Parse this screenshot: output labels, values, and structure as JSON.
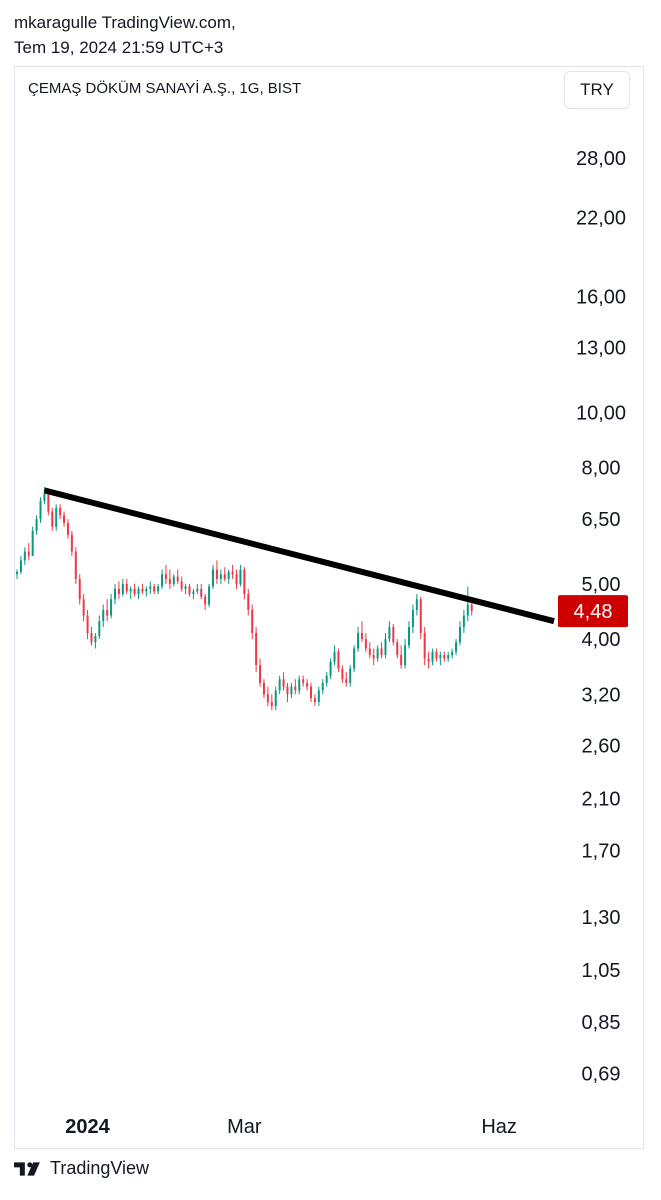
{
  "header": {
    "line1": "mkaragulle TradingView.com,",
    "line2": "Tem 19, 2024 21:59 UTC+3"
  },
  "chart_header": {
    "symbol": "ÇEMAŞ DÖKÜM SANAYİ A.Ş., 1G, BIST",
    "currency": "TRY"
  },
  "footer": {
    "brand": "TradingView"
  },
  "colors": {
    "up": "#089981",
    "down": "#f23645",
    "last_price_bg": "#cc0000",
    "trendline": "#000000"
  },
  "chart_data": {
    "type": "candlestick",
    "scale": "log",
    "ylim": [
      0.62,
      34
    ],
    "y_ticks": [
      {
        "v": 28,
        "label": "28,00"
      },
      {
        "v": 22,
        "label": "22,00"
      },
      {
        "v": 16,
        "label": "16,00"
      },
      {
        "v": 13,
        "label": "13,00"
      },
      {
        "v": 10,
        "label": "10,00"
      },
      {
        "v": 8,
        "label": "8,00"
      },
      {
        "v": 6.5,
        "label": "6,50"
      },
      {
        "v": 5,
        "label": "5,00"
      },
      {
        "v": 4,
        "label": "4,00"
      },
      {
        "v": 3.2,
        "label": "3,20"
      },
      {
        "v": 2.6,
        "label": "2,60"
      },
      {
        "v": 2.1,
        "label": "2,10"
      },
      {
        "v": 1.7,
        "label": "1,70"
      },
      {
        "v": 1.3,
        "label": "1,30"
      },
      {
        "v": 1.05,
        "label": "1,05"
      },
      {
        "v": 0.85,
        "label": "0,85"
      },
      {
        "v": 0.69,
        "label": "0,69"
      }
    ],
    "x_labels": [
      {
        "label": "2024",
        "bold": true,
        "bar": 18
      },
      {
        "label": "Mar",
        "bold": false,
        "bar": 58
      },
      {
        "label": "Haz",
        "bold": false,
        "bar": 123
      }
    ],
    "last_price": {
      "value": 4.48,
      "label": "4,48"
    },
    "trendline": {
      "from": {
        "bar": 7,
        "price": 7.3
      },
      "to": {
        "bar": 137,
        "price": 4.3
      }
    },
    "bars": [
      [
        5.2,
        5.3,
        5.1,
        5.25
      ],
      [
        5.25,
        5.6,
        5.2,
        5.5
      ],
      [
        5.5,
        5.8,
        5.4,
        5.7
      ],
      [
        5.7,
        5.9,
        5.5,
        5.6
      ],
      [
        5.6,
        6.3,
        5.6,
        6.2
      ],
      [
        6.2,
        6.6,
        6.1,
        6.5
      ],
      [
        6.5,
        7.1,
        6.4,
        7.0
      ],
      [
        7.0,
        7.4,
        6.9,
        7.2
      ],
      [
        7.2,
        7.3,
        6.6,
        6.7
      ],
      [
        6.7,
        6.8,
        6.2,
        6.3
      ],
      [
        6.3,
        6.9,
        6.2,
        6.8
      ],
      [
        6.8,
        6.9,
        6.5,
        6.6
      ],
      [
        6.6,
        6.7,
        6.3,
        6.4
      ],
      [
        6.4,
        6.5,
        6.0,
        6.1
      ],
      [
        6.1,
        6.2,
        5.6,
        5.7
      ],
      [
        5.7,
        5.8,
        5.0,
        5.1
      ],
      [
        5.1,
        5.2,
        4.6,
        4.7
      ],
      [
        4.7,
        4.8,
        4.3,
        4.4
      ],
      [
        4.4,
        4.5,
        4.0,
        4.1
      ],
      [
        4.1,
        4.2,
        3.9,
        3.95
      ],
      [
        3.95,
        4.1,
        3.85,
        4.05
      ],
      [
        4.05,
        4.4,
        4.0,
        4.3
      ],
      [
        4.3,
        4.6,
        4.2,
        4.5
      ],
      [
        4.5,
        4.7,
        4.3,
        4.4
      ],
      [
        4.4,
        4.8,
        4.35,
        4.7
      ],
      [
        4.7,
        5.0,
        4.6,
        4.9
      ],
      [
        4.9,
        5.05,
        4.7,
        4.8
      ],
      [
        4.8,
        5.1,
        4.75,
        5.0
      ],
      [
        5.0,
        5.1,
        4.8,
        4.85
      ],
      [
        4.85,
        4.95,
        4.7,
        4.9
      ],
      [
        4.9,
        5.0,
        4.75,
        4.8
      ],
      [
        4.8,
        4.95,
        4.7,
        4.9
      ],
      [
        4.9,
        5.0,
        4.8,
        4.85
      ],
      [
        4.85,
        4.95,
        4.75,
        4.9
      ],
      [
        4.9,
        5.05,
        4.8,
        4.95
      ],
      [
        4.95,
        5.0,
        4.8,
        4.85
      ],
      [
        4.85,
        5.0,
        4.8,
        4.95
      ],
      [
        4.95,
        5.3,
        4.9,
        5.2
      ],
      [
        5.2,
        5.4,
        5.0,
        5.1
      ],
      [
        5.1,
        5.3,
        4.9,
        5.0
      ],
      [
        5.0,
        5.2,
        4.95,
        5.15
      ],
      [
        5.15,
        5.3,
        5.0,
        5.05
      ],
      [
        5.05,
        5.15,
        4.85,
        4.9
      ],
      [
        4.9,
        5.0,
        4.8,
        4.95
      ],
      [
        4.95,
        5.0,
        4.75,
        4.8
      ],
      [
        4.8,
        4.9,
        4.7,
        4.85
      ],
      [
        4.85,
        5.0,
        4.8,
        4.9
      ],
      [
        4.9,
        5.0,
        4.7,
        4.75
      ],
      [
        4.75,
        4.8,
        4.5,
        4.6
      ],
      [
        4.6,
        5.0,
        4.55,
        4.95
      ],
      [
        4.95,
        5.4,
        4.9,
        5.3
      ],
      [
        5.3,
        5.5,
        5.0,
        5.1
      ],
      [
        5.1,
        5.3,
        5.0,
        5.2
      ],
      [
        5.2,
        5.35,
        5.05,
        5.1
      ],
      [
        5.1,
        5.3,
        5.0,
        5.25
      ],
      [
        5.25,
        5.4,
        5.1,
        5.2
      ],
      [
        5.2,
        5.3,
        4.9,
        5.0
      ],
      [
        5.0,
        5.4,
        4.95,
        5.3
      ],
      [
        5.3,
        5.35,
        4.7,
        4.8
      ],
      [
        4.8,
        4.9,
        4.4,
        4.5
      ],
      [
        4.5,
        4.6,
        4.0,
        4.1
      ],
      [
        4.1,
        4.2,
        3.5,
        3.6
      ],
      [
        3.6,
        3.7,
        3.3,
        3.35
      ],
      [
        3.35,
        3.4,
        3.15,
        3.2
      ],
      [
        3.2,
        3.3,
        3.05,
        3.1
      ],
      [
        3.1,
        3.2,
        3.0,
        3.05
      ],
      [
        3.05,
        3.3,
        3.0,
        3.25
      ],
      [
        3.25,
        3.45,
        3.2,
        3.4
      ],
      [
        3.4,
        3.5,
        3.25,
        3.3
      ],
      [
        3.3,
        3.35,
        3.1,
        3.2
      ],
      [
        3.2,
        3.35,
        3.15,
        3.3
      ],
      [
        3.3,
        3.4,
        3.2,
        3.25
      ],
      [
        3.25,
        3.45,
        3.2,
        3.4
      ],
      [
        3.4,
        3.45,
        3.3,
        3.35
      ],
      [
        3.35,
        3.4,
        3.25,
        3.3
      ],
      [
        3.3,
        3.35,
        3.1,
        3.15
      ],
      [
        3.15,
        3.2,
        3.05,
        3.1
      ],
      [
        3.1,
        3.3,
        3.05,
        3.25
      ],
      [
        3.25,
        3.4,
        3.2,
        3.35
      ],
      [
        3.35,
        3.5,
        3.3,
        3.45
      ],
      [
        3.45,
        3.7,
        3.4,
        3.65
      ],
      [
        3.65,
        3.9,
        3.6,
        3.8
      ],
      [
        3.8,
        3.85,
        3.5,
        3.55
      ],
      [
        3.55,
        3.6,
        3.35,
        3.4
      ],
      [
        3.4,
        3.5,
        3.3,
        3.35
      ],
      [
        3.35,
        3.6,
        3.3,
        3.55
      ],
      [
        3.55,
        3.9,
        3.5,
        3.85
      ],
      [
        3.85,
        4.2,
        3.8,
        4.1
      ],
      [
        4.1,
        4.3,
        3.95,
        4.0
      ],
      [
        4.0,
        4.1,
        3.8,
        3.85
      ],
      [
        3.85,
        3.95,
        3.7,
        3.75
      ],
      [
        3.75,
        3.85,
        3.6,
        3.7
      ],
      [
        3.7,
        3.9,
        3.65,
        3.85
      ],
      [
        3.85,
        3.95,
        3.7,
        3.75
      ],
      [
        3.75,
        4.1,
        3.7,
        4.0
      ],
      [
        4.0,
        4.3,
        3.95,
        4.2
      ],
      [
        4.2,
        4.25,
        3.9,
        3.95
      ],
      [
        3.95,
        4.0,
        3.7,
        3.75
      ],
      [
        3.75,
        3.9,
        3.55,
        3.6
      ],
      [
        3.6,
        4.0,
        3.55,
        3.9
      ],
      [
        3.9,
        4.3,
        3.85,
        4.2
      ],
      [
        4.2,
        4.6,
        4.1,
        4.5
      ],
      [
        4.5,
        4.8,
        4.4,
        4.7
      ],
      [
        4.7,
        4.75,
        4.0,
        4.1
      ],
      [
        4.1,
        4.2,
        3.6,
        3.7
      ],
      [
        3.7,
        3.8,
        3.55,
        3.65
      ],
      [
        3.65,
        3.85,
        3.6,
        3.8
      ],
      [
        3.8,
        3.85,
        3.65,
        3.7
      ],
      [
        3.7,
        3.8,
        3.6,
        3.75
      ],
      [
        3.75,
        3.8,
        3.65,
        3.7
      ],
      [
        3.7,
        3.8,
        3.65,
        3.75
      ],
      [
        3.75,
        3.85,
        3.7,
        3.8
      ],
      [
        3.8,
        4.0,
        3.75,
        3.95
      ],
      [
        3.95,
        4.3,
        3.9,
        4.2
      ],
      [
        4.2,
        4.5,
        4.1,
        4.4
      ],
      [
        4.4,
        4.95,
        4.3,
        4.6
      ],
      [
        4.6,
        4.7,
        4.4,
        4.48
      ]
    ]
  }
}
